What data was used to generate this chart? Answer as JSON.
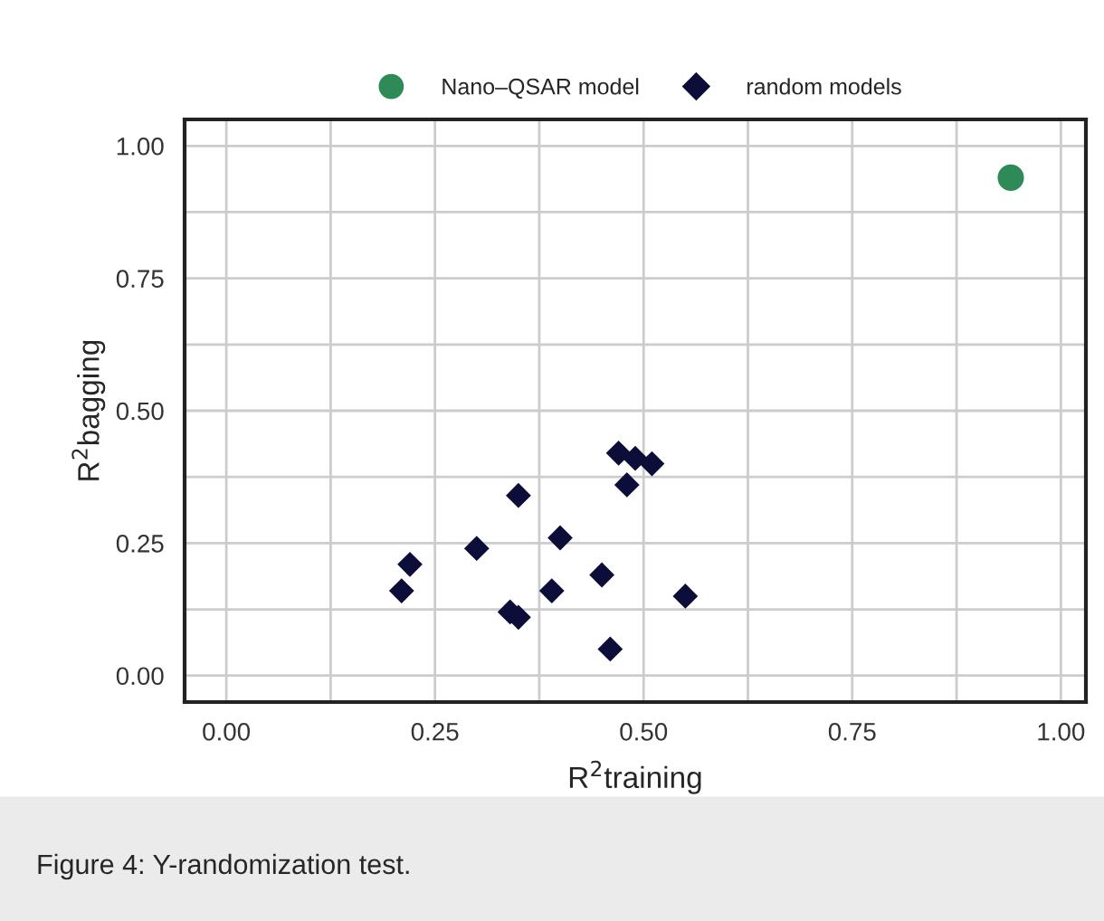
{
  "chart_data": {
    "type": "scatter",
    "xlabel": "R$^{2}$training",
    "ylabel": "R$^{2}$bagging",
    "annotations": [
      "Figure 4: Y-randomization test."
    ],
    "xlim": [
      -0.05,
      1.03
    ],
    "ylim": [
      -0.05,
      1.05
    ],
    "xticks": [
      {
        "value": 0,
        "label": "0.00"
      },
      {
        "value": 0.125,
        "label": null
      },
      0.25,
      {
        "value": 0.375,
        "label": null
      },
      {
        "value": 0.5,
        "label": "0.50"
      },
      {
        "value": 0.625,
        "label": null
      },
      0.75,
      {
        "value": 0.875,
        "label": null
      },
      {
        "value": 1,
        "label": "1.00"
      }
    ],
    "yticks": [
      {
        "value": 0,
        "label": "0.00"
      },
      {
        "value": 0.125,
        "label": null
      },
      0.25,
      {
        "value": 0.375,
        "label": null
      },
      {
        "value": 0.5,
        "label": "0.50"
      },
      {
        "value": 0.625,
        "label": null
      },
      0.75,
      {
        "value": 0.875,
        "label": null
      },
      {
        "value": 1,
        "label": "1.00"
      }
    ],
    "grid": true,
    "legend": "top",
    "series": [
      {
        "name": "Nano–QSAR model",
        "color": "#2e8b57",
        "marker": "circle",
        "x": [
          0.94
        ],
        "values": [
          0.94
        ]
      },
      {
        "name": "random models",
        "color": "#0d0d3a",
        "marker": "diamond",
        "x": [
          0.21,
          0.22,
          0.3,
          0.34,
          0.35,
          0.35,
          0.39,
          0.4,
          0.45,
          0.46,
          0.47,
          0.48,
          0.49,
          0.51,
          0.55
        ],
        "values": [
          0.16,
          0.21,
          0.24,
          0.12,
          0.11,
          0.34,
          0.16,
          0.26,
          0.19,
          0.05,
          0.42,
          0.36,
          0.41,
          0.4,
          0.15
        ]
      }
    ]
  }
}
